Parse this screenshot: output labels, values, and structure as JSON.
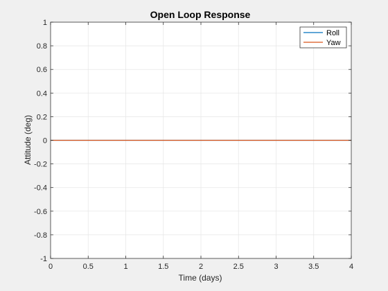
{
  "chart_data": {
    "type": "line",
    "title": "Open Loop Response",
    "xlabel": "Time (days)",
    "ylabel": "Attitude (deg)",
    "xlim": [
      0,
      4
    ],
    "ylim": [
      -1,
      1
    ],
    "xticks": [
      0,
      0.5,
      1,
      1.5,
      2,
      2.5,
      3,
      3.5,
      4
    ],
    "yticks": [
      -1,
      -0.8,
      -0.6,
      -0.4,
      -0.2,
      0,
      0.2,
      0.4,
      0.6,
      0.8,
      1
    ],
    "xtick_labels": [
      "0",
      "0.5",
      "1",
      "1.5",
      "2",
      "2.5",
      "3",
      "3.5",
      "4"
    ],
    "ytick_labels": [
      "-1",
      "-0.8",
      "-0.6",
      "-0.4",
      "-0.2",
      "0",
      "0.2",
      "0.4",
      "0.6",
      "0.8",
      "1"
    ],
    "grid": true,
    "legend_position": "top-right",
    "series": [
      {
        "name": "Roll",
        "color": "#0072BD",
        "x": [
          0,
          4
        ],
        "y": [
          0,
          0
        ]
      },
      {
        "name": "Yaw",
        "color": "#D95319",
        "x": [
          0,
          4
        ],
        "y": [
          0,
          0
        ]
      }
    ]
  },
  "colors": {
    "figure_background": "#f0f0f0",
    "axes_background": "#ffffff",
    "axis": "#262626",
    "grid": "#e6e6e6"
  }
}
